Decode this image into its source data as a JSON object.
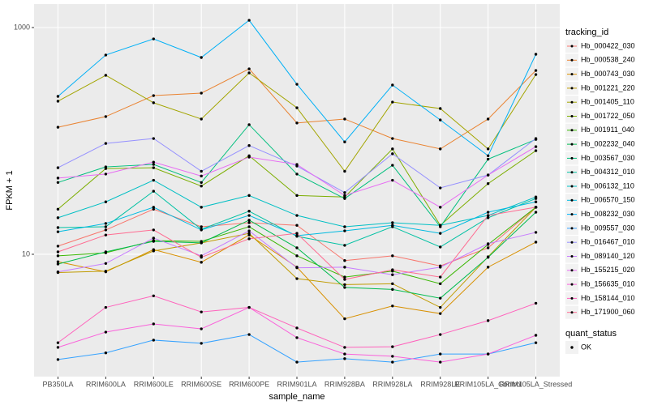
{
  "chart_data": {
    "type": "line",
    "log_y": true,
    "grid": true,
    "x_label": "sample_name",
    "y_label": "FPKM + 1",
    "categories": [
      "PB350LA",
      "RRIM600LA",
      "RRIM600LE",
      "RRIM600SE",
      "RRIM600PE",
      "RRIM901LA",
      "RRIM928BA",
      "RRIM928LA",
      "RRIM928LE",
      "RRIM105LA_Control",
      "RRIM105LA_Stressed"
    ],
    "ylim": [
      0.834,
      1611
    ],
    "yticks": [
      10,
      1000
    ],
    "legend_title": "tracking_id",
    "legend_position": "right",
    "shape_legend": {
      "title": "quant_status",
      "labels": [
        "OK"
      ]
    },
    "series": [
      {
        "name": "Hb_000422_030",
        "color": "#F8766D",
        "values": [
          11.8,
          16.4,
          25,
          17.5,
          19,
          18,
          8.8,
          9.7,
          7.9,
          11.4,
          26
        ]
      },
      {
        "name": "Hb_000538_240",
        "color": "#EA8331",
        "values": [
          132,
          164,
          251,
          264,
          432,
          144,
          156,
          105,
          85,
          156,
          418
        ]
      },
      {
        "name": "Hb_000743_030",
        "color": "#D89000",
        "values": [
          8.6,
          7.0,
          11,
          8.5,
          14.8,
          7.7,
          2.7,
          3.5,
          3.0,
          7.7,
          12.8
        ]
      },
      {
        "name": "Hb_001221_220",
        "color": "#C09B00",
        "values": [
          6.9,
          7.1,
          10.7,
          12.6,
          15.3,
          6.1,
          5.4,
          5.5,
          3.4,
          9.5,
          26
        ]
      },
      {
        "name": "Hb_001405_110",
        "color": "#A3A500",
        "values": [
          224,
          379,
          217,
          156,
          398,
          196,
          54,
          220,
          193,
          85,
          385
        ]
      },
      {
        "name": "Hb_001722_050",
        "color": "#7CAE00",
        "values": [
          25,
          57,
          58,
          40,
          74,
          33,
          32,
          85,
          18,
          42,
          82
        ]
      },
      {
        "name": "Hb_001911_040",
        "color": "#39B600",
        "values": [
          9.7,
          10.3,
          13.2,
          13,
          17.5,
          9.7,
          6.3,
          7.1,
          5.5,
          12.2,
          26
        ]
      },
      {
        "name": "Hb_002232_040",
        "color": "#00BB4E",
        "values": [
          8.2,
          10.5,
          13,
          12.6,
          20,
          11.4,
          5.1,
          4.9,
          4.1,
          9.4,
          23.5
        ]
      },
      {
        "name": "Hb_003567_030",
        "color": "#00BF7D",
        "values": [
          43,
          59,
          62,
          43,
          139,
          51,
          31,
          61,
          17.5,
          69,
          103
        ]
      },
      {
        "name": "Hb_004312_010",
        "color": "#00C1A3",
        "values": [
          17.2,
          17.5,
          36,
          16.6,
          24,
          14.4,
          12,
          17.5,
          11.6,
          21,
          31
        ]
      },
      {
        "name": "Hb_006132_110",
        "color": "#00BFC4",
        "values": [
          21,
          29,
          45,
          26,
          33,
          22,
          17.5,
          19,
          18,
          22,
          32
        ]
      },
      {
        "name": "Hb_006570_150",
        "color": "#00BAE0",
        "values": [
          15.8,
          18.7,
          26,
          16.4,
          22,
          14.6,
          16.1,
          18,
          15.3,
          23.5,
          29
        ]
      },
      {
        "name": "Hb_008232_030",
        "color": "#00B0F6",
        "values": [
          247,
          572,
          794,
          544,
          1159,
          316,
          98,
          311,
          153,
          74,
          581
        ]
      },
      {
        "name": "Hb_009557_030",
        "color": "#35A2FF",
        "values": [
          1.18,
          1.35,
          1.75,
          1.64,
          1.96,
          1.12,
          1.2,
          1.12,
          1.32,
          1.32,
          1.66
        ]
      },
      {
        "name": "Hb_016467_010",
        "color": "#9590FF",
        "values": [
          58,
          95,
          105,
          54,
          91,
          60,
          35,
          77,
          38.5,
          50,
          105
        ]
      },
      {
        "name": "Hb_089140_120",
        "color": "#C77CFF",
        "values": [
          7.0,
          8.3,
          13.9,
          9.7,
          16.1,
          7.6,
          7.7,
          6.6,
          7.7,
          12.4,
          15.6
        ]
      },
      {
        "name": "Hb_155215_020",
        "color": "#E76BF3",
        "values": [
          47,
          51,
          65,
          49,
          72,
          62,
          33,
          45,
          26,
          50,
          89
        ]
      },
      {
        "name": "Hb_156635_010",
        "color": "#FA62DB",
        "values": [
          1.51,
          2.06,
          2.43,
          2.2,
          3.4,
          1.84,
          1.32,
          1.26,
          1.12,
          1.32,
          1.93
        ]
      },
      {
        "name": "Hb_158144_010",
        "color": "#FF62BC",
        "values": [
          1.66,
          3.4,
          4.3,
          3.1,
          3.4,
          2.24,
          1.51,
          1.53,
          1.96,
          2.6,
          3.7
        ]
      },
      {
        "name": "Hb_171900_060",
        "color": "#FF6C91",
        "values": [
          10.5,
          14.8,
          16.4,
          9.4,
          13.7,
          15.3,
          6.0,
          7.3,
          6.3,
          22,
          26
        ]
      }
    ]
  }
}
